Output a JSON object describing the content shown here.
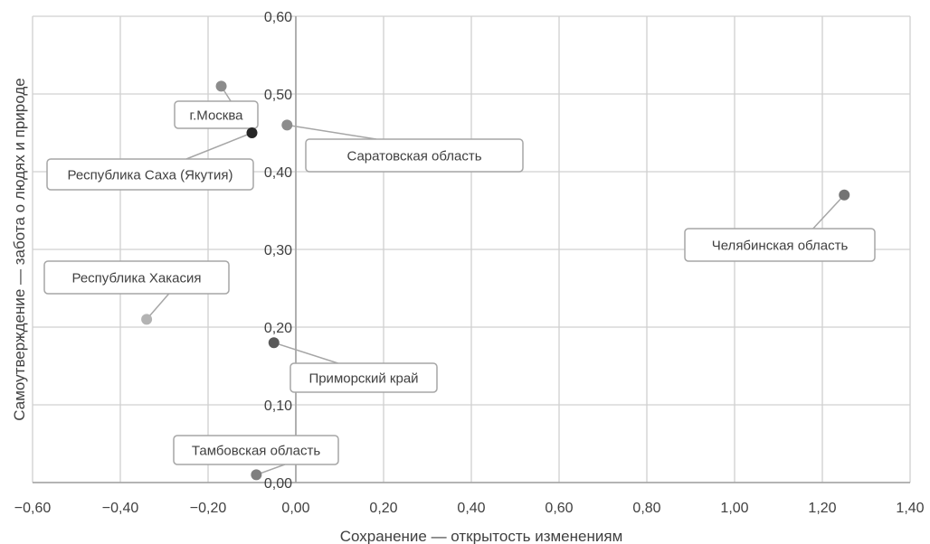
{
  "chart_data": {
    "type": "scatter",
    "xlabel": "Сохранение — открытость изменениям",
    "ylabel": "Самоутверждение — забота о людях и природе",
    "xlim": [
      -0.6,
      1.4
    ],
    "ylim": [
      0.0,
      0.6
    ],
    "xticks": [
      -0.6,
      -0.4,
      -0.2,
      0.0,
      0.2,
      0.4,
      0.6,
      0.8,
      1.0,
      1.2,
      1.4
    ],
    "yticks": [
      0.0,
      0.1,
      0.2,
      0.3,
      0.4,
      0.5,
      0.6
    ],
    "xtick_labels": [
      "−0,60",
      "−0,40",
      "−0,20",
      "0,00",
      "0,20",
      "0,40",
      "0,60",
      "0,80",
      "1,00",
      "1,20",
      "1,40"
    ],
    "ytick_labels": [
      "0,00",
      "0,10",
      "0,20",
      "0,30",
      "0,40",
      "0,50",
      "0,60"
    ],
    "grid": true,
    "points": [
      {
        "label": "г.Москва",
        "x": -0.17,
        "y": 0.51,
        "color": "#8c8c8c"
      },
      {
        "label": "Республика Саха (Якутия)",
        "x": -0.1,
        "y": 0.45,
        "color": "#262626"
      },
      {
        "label": "Саратовская область",
        "x": -0.02,
        "y": 0.46,
        "color": "#8c8c8c"
      },
      {
        "label": "Челябинская область",
        "x": 1.25,
        "y": 0.37,
        "color": "#737373"
      },
      {
        "label": "Республика Хакасия",
        "x": -0.34,
        "y": 0.21,
        "color": "#b3b3b3"
      },
      {
        "label": "Приморский край",
        "x": -0.05,
        "y": 0.18,
        "color": "#595959"
      },
      {
        "label": "Тамбовская область",
        "x": -0.09,
        "y": 0.01,
        "color": "#7f7f7f"
      }
    ]
  }
}
